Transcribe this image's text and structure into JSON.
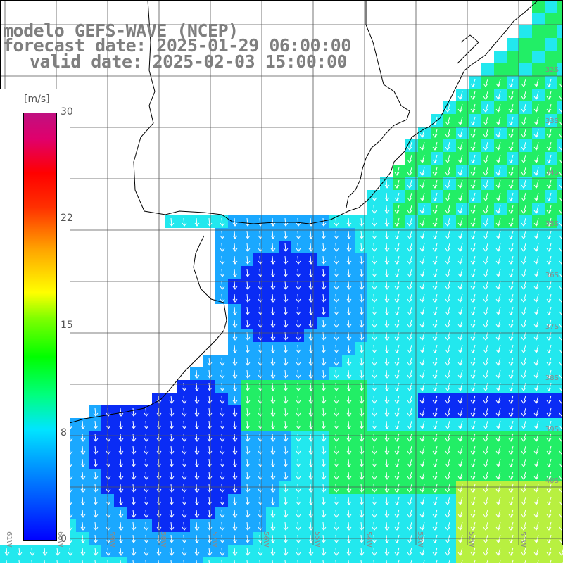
{
  "header": {
    "line1": "modelo GEFS-WAVE (NCEP)",
    "line2": "forecast date: 2025-01-29 06:00:00",
    "line3": "valid date: 2025-02-03 15:00:00"
  },
  "legend": {
    "unit": "[m/s]",
    "ticks": [
      "30",
      "22",
      "15",
      "8",
      "0"
    ],
    "colors": [
      "#0000ff",
      "#009cff",
      "#00e5ff",
      "#00ff00",
      "#ffff00",
      "#ffa500",
      "#ff0000",
      "#c01080"
    ]
  },
  "grid": {
    "lat_labels": [
      "32S",
      "33S",
      "34S",
      "35S",
      "36S",
      "37S",
      "38S",
      "39S",
      "40S"
    ],
    "lon_labels": [
      "61W",
      "60W",
      "59W",
      "58W",
      "57W",
      "56W",
      "55W",
      "54W",
      "53W",
      "52W",
      "51W"
    ]
  },
  "colors": {
    "land": "#ffffff",
    "coast": "#000000",
    "grid": "#555555",
    "arrow": "#ffffff",
    "slow": "#0a2cf5",
    "medium": "#1aa8ff",
    "cyan": "#22e8ee",
    "fast": "#22ee66",
    "strong": "#b8f040"
  }
}
